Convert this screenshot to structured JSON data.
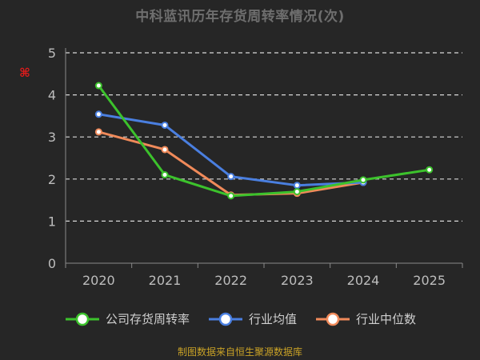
{
  "chart_data": {
    "type": "line",
    "title": "中科蓝讯历年存货周转率情况(次)",
    "unit_label": "⌘",
    "categories": [
      "2020",
      "2021",
      "2022",
      "2023",
      "2024",
      "2025"
    ],
    "ylim": [
      0,
      5
    ],
    "yticks": [
      "0",
      "1",
      "2",
      "3",
      "4",
      "5"
    ],
    "grid": true,
    "legend_position": "bottom",
    "series": [
      {
        "name": "公司存货周转率",
        "color": "#3cc22c",
        "values": [
          4.22,
          2.1,
          1.6,
          1.7,
          1.98,
          2.22
        ]
      },
      {
        "name": "行业均值",
        "color": "#4a7fe0",
        "values": [
          3.54,
          3.28,
          2.06,
          1.85,
          1.92,
          null
        ]
      },
      {
        "name": "行业中位数",
        "color": "#f08a5a",
        "values": [
          3.12,
          2.7,
          1.62,
          1.66,
          1.92,
          null
        ]
      }
    ],
    "source_note": "制图数据来自恒生聚源数据库"
  }
}
